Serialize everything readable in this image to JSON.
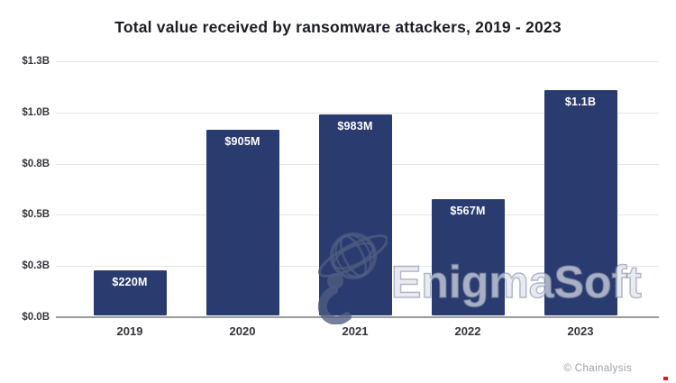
{
  "title": "Total value received by ransomware attackers, 2019 - 2023",
  "chart_data": {
    "type": "bar",
    "title": "Total value received by ransomware attackers, 2019 - 2023",
    "categories": [
      "2019",
      "2020",
      "2021",
      "2022",
      "2023"
    ],
    "values": [
      220,
      905,
      983,
      567,
      1100
    ],
    "value_unit": "USD millions",
    "bar_labels": [
      "$220M",
      "$905M",
      "$983M",
      "$567M",
      "$1.1B"
    ],
    "y_ticks": [
      "$0.0B",
      "$0.3B",
      "$0.5B",
      "$0.8B",
      "$1.0B",
      "$1.3B"
    ],
    "y_tick_values": [
      0,
      250,
      500,
      750,
      1000,
      1250
    ],
    "ylim": [
      0,
      1250
    ],
    "xlabel": "",
    "ylabel": "",
    "grid": "horizontal",
    "legend": "none",
    "bar_color": "#2a3b70"
  },
  "watermark": {
    "text": "EnigmaSoft",
    "logo": "globe-person-icon"
  },
  "attribution": "© Chainalysis",
  "colors": {
    "bar": "#2a3b70",
    "gridline": "#e5e5e7",
    "axis_line": "#9a9a9a",
    "title_text": "#1d1d27",
    "tick_text": "#35353e",
    "bar_label_text": "#ffffff",
    "attribution_text": "#9ba0a8",
    "red_dot": "#e01a1a"
  }
}
